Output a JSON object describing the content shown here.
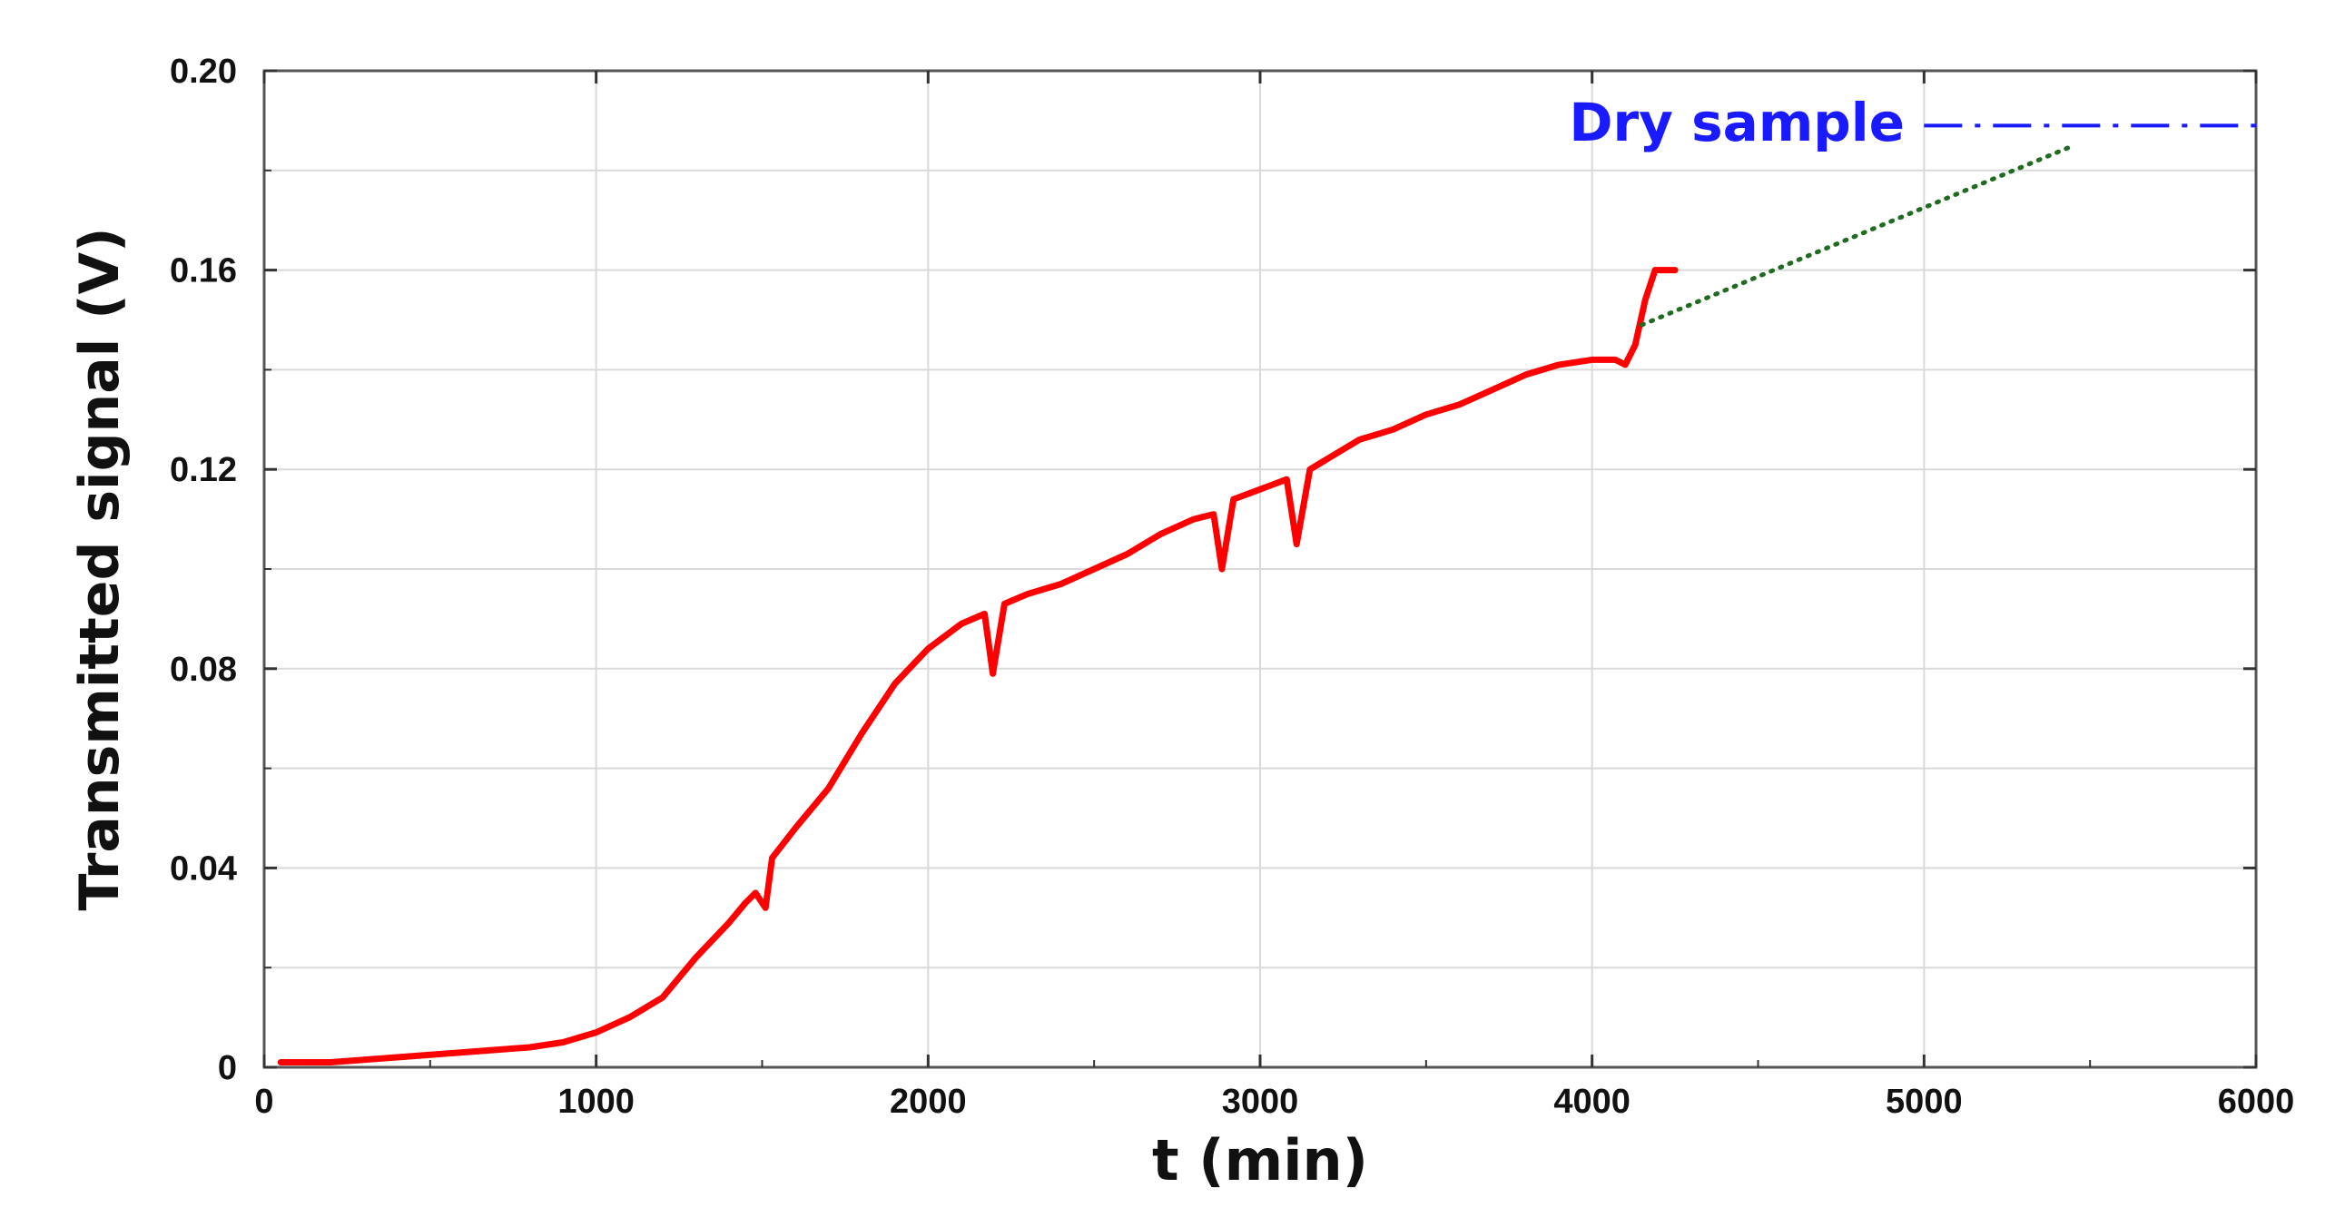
{
  "chart_data": {
    "type": "line",
    "xlabel": "t (min)",
    "ylabel": "Transmitted signal (V)",
    "xlim": [
      0,
      6000
    ],
    "ylim": [
      0,
      0.2
    ],
    "x_ticks": [
      0,
      1000,
      2000,
      3000,
      4000,
      5000,
      6000
    ],
    "x_tick_labels": [
      "0",
      "1000",
      "2000",
      "3000",
      "4000",
      "5000",
      "6000"
    ],
    "y_ticks": [
      0,
      0.04,
      0.08,
      0.12,
      0.16,
      0.2
    ],
    "y_tick_labels": [
      "0",
      "0.04",
      "0.08",
      "0.12",
      "0.16",
      "0.20"
    ],
    "grid": true,
    "series": [
      {
        "style": "solid",
        "color": "#ff0000",
        "points": [
          [
            50,
            0.001
          ],
          [
            200,
            0.001
          ],
          [
            400,
            0.002
          ],
          [
            600,
            0.003
          ],
          [
            800,
            0.004
          ],
          [
            900,
            0.005
          ],
          [
            1000,
            0.007
          ],
          [
            1100,
            0.01
          ],
          [
            1200,
            0.014
          ],
          [
            1300,
            0.022
          ],
          [
            1400,
            0.029
          ],
          [
            1450,
            0.033
          ],
          [
            1480,
            0.035
          ],
          [
            1510,
            0.032
          ],
          [
            1530,
            0.042
          ],
          [
            1600,
            0.048
          ],
          [
            1700,
            0.056
          ],
          [
            1800,
            0.067
          ],
          [
            1900,
            0.077
          ],
          [
            2000,
            0.084
          ],
          [
            2100,
            0.089
          ],
          [
            2170,
            0.091
          ],
          [
            2195,
            0.079
          ],
          [
            2230,
            0.093
          ],
          [
            2300,
            0.095
          ],
          [
            2400,
            0.097
          ],
          [
            2500,
            0.1
          ],
          [
            2600,
            0.103
          ],
          [
            2700,
            0.107
          ],
          [
            2800,
            0.11
          ],
          [
            2860,
            0.111
          ],
          [
            2885,
            0.1
          ],
          [
            2920,
            0.114
          ],
          [
            3000,
            0.116
          ],
          [
            3080,
            0.118
          ],
          [
            3110,
            0.105
          ],
          [
            3150,
            0.12
          ],
          [
            3200,
            0.122
          ],
          [
            3300,
            0.126
          ],
          [
            3400,
            0.128
          ],
          [
            3500,
            0.131
          ],
          [
            3600,
            0.133
          ],
          [
            3700,
            0.136
          ],
          [
            3800,
            0.139
          ],
          [
            3900,
            0.141
          ],
          [
            4000,
            0.142
          ],
          [
            4070,
            0.142
          ],
          [
            4100,
            0.141
          ],
          [
            4130,
            0.145
          ],
          [
            4160,
            0.154
          ],
          [
            4190,
            0.16
          ],
          [
            4250,
            0.16
          ]
        ]
      },
      {
        "style": "dotted",
        "color": "#1f6b1f",
        "points": [
          [
            4150,
            0.149
          ],
          [
            5450,
            0.185
          ]
        ]
      },
      {
        "style": "dash-dot",
        "color": "#1a1aff",
        "points": [
          [
            5000,
            0.189
          ],
          [
            6000,
            0.189
          ]
        ]
      }
    ],
    "annotations": [
      {
        "text": "Dry sample",
        "color": "#1a1aff"
      }
    ]
  }
}
